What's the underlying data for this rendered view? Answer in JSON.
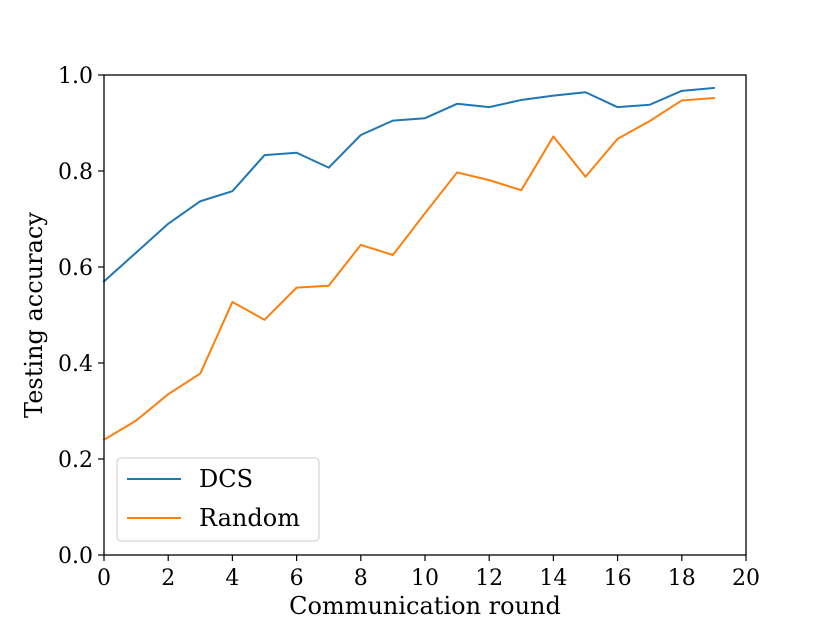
{
  "chart_data": {
    "type": "line",
    "title": "",
    "xlabel": "Communication round",
    "ylabel": "Testing accuracy",
    "xlim": [
      0,
      20
    ],
    "ylim": [
      0.0,
      1.0
    ],
    "xticks": [
      0,
      2,
      4,
      6,
      8,
      10,
      12,
      14,
      16,
      18,
      20
    ],
    "xtick_labels": [
      "0",
      "2",
      "4",
      "6",
      "8",
      "10",
      "12",
      "14",
      "16",
      "18",
      "20"
    ],
    "yticks": [
      0.0,
      0.2,
      0.4,
      0.6,
      0.8,
      1.0
    ],
    "ytick_labels": [
      "0.0",
      "0.2",
      "0.4",
      "0.6",
      "0.8",
      "1.0"
    ],
    "grid": false,
    "legend_position": "lower-left",
    "x": [
      0,
      1,
      2,
      3,
      4,
      5,
      6,
      7,
      8,
      9,
      10,
      11,
      12,
      13,
      14,
      15,
      16,
      17,
      18,
      19
    ],
    "series": [
      {
        "name": "DCS",
        "color": "#1f77b4",
        "values": [
          0.57,
          0.63,
          0.69,
          0.737,
          0.758,
          0.833,
          0.838,
          0.807,
          0.875,
          0.905,
          0.91,
          0.94,
          0.933,
          0.948,
          0.957,
          0.964,
          0.933,
          0.938,
          0.967,
          0.973
        ]
      },
      {
        "name": "Random",
        "color": "#ff7f0e",
        "values": [
          0.24,
          0.28,
          0.335,
          0.378,
          0.527,
          0.49,
          0.557,
          0.561,
          0.646,
          0.625,
          0.712,
          0.797,
          0.781,
          0.76,
          0.872,
          0.788,
          0.867,
          0.904,
          0.947,
          0.952
        ]
      }
    ]
  }
}
